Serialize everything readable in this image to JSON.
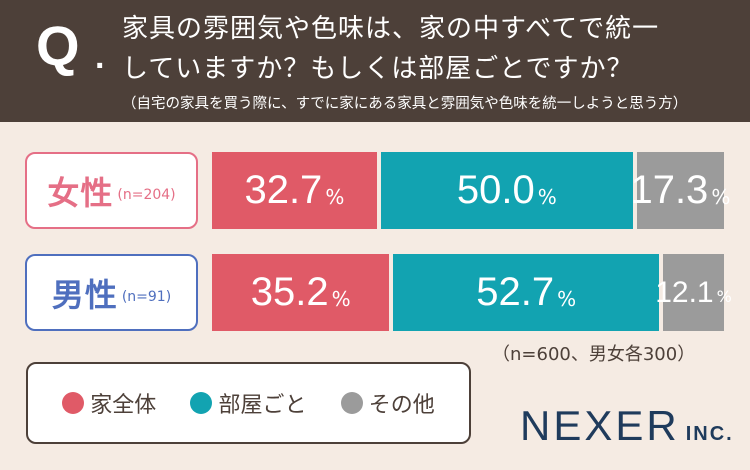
{
  "header": {
    "q_mark": "Q",
    "q_dot": ".",
    "question_line1": "家具の雰囲気や色味は、家の中すべてで統一",
    "question_line2": "していますか？もしくは部屋ごとですか？",
    "note": "（自宅の家具を買う際に、すでに家にある家具と雰囲気や色味を統一しようと思う方）"
  },
  "chart_data": {
    "type": "bar",
    "stacked": true,
    "orientation": "horizontal",
    "categories": [
      "女性",
      "男性"
    ],
    "category_notes": [
      "(n=204)",
      "(n=91)"
    ],
    "series": [
      {
        "name": "家全体",
        "values": [
          32.7,
          35.2
        ],
        "color": "#e05a67"
      },
      {
        "name": "部屋ごと",
        "values": [
          50.0,
          52.7
        ],
        "color": "#12a3b1"
      },
      {
        "name": "その他",
        "values": [
          17.3,
          12.1
        ],
        "color": "#9b9b9b"
      }
    ],
    "value_labels": [
      [
        "32.7",
        "50.0",
        "17.3"
      ],
      [
        "35.2",
        "52.7",
        "12.1"
      ]
    ],
    "unit": "%",
    "xlim": [
      0,
      100
    ],
    "label_colors": [
      "#e56f86",
      "#4f6fbe"
    ],
    "legend_position": "bottom-left"
  },
  "sample_note": "（n=600、男女各300）",
  "brand": {
    "name": "NEXER",
    "suffix": "INC."
  }
}
